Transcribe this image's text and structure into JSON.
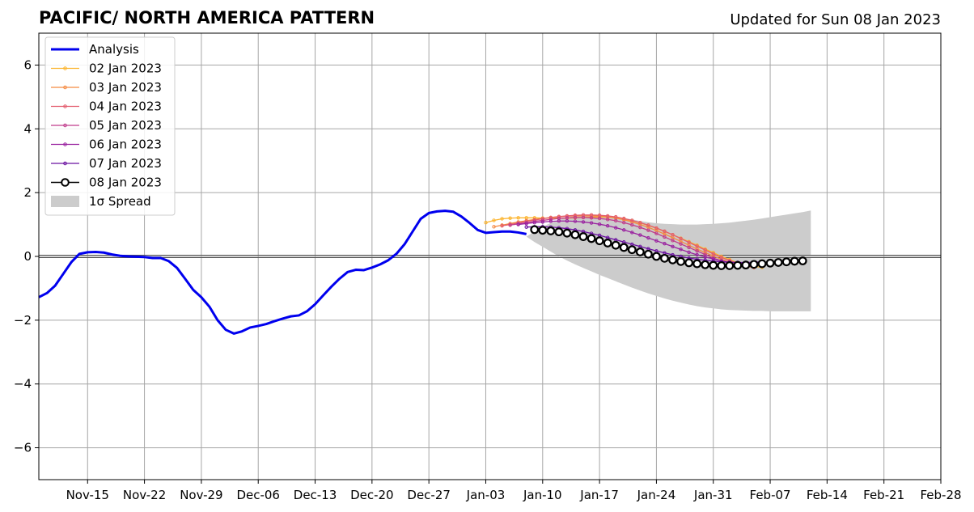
{
  "chart_data": {
    "type": "line",
    "title": "PACIFIC/ NORTH AMERICA PATTERN",
    "subtitle": "Updated for Sun 08 Jan 2023",
    "xlabel": "",
    "ylabel": "",
    "x_range": [
      "2022-11-09",
      "2023-02-28"
    ],
    "ylim": [
      -7,
      7
    ],
    "grid": true,
    "legend_position": "top-left",
    "x_ticks": [
      {
        "date": "2022-11-15",
        "label": "Nov-15"
      },
      {
        "date": "2022-11-22",
        "label": "Nov-22"
      },
      {
        "date": "2022-11-29",
        "label": "Nov-29"
      },
      {
        "date": "2022-12-06",
        "label": "Dec-06"
      },
      {
        "date": "2022-12-13",
        "label": "Dec-13"
      },
      {
        "date": "2022-12-20",
        "label": "Dec-20"
      },
      {
        "date": "2022-12-27",
        "label": "Dec-27"
      },
      {
        "date": "2023-01-03",
        "label": "Jan-03"
      },
      {
        "date": "2023-01-10",
        "label": "Jan-10"
      },
      {
        "date": "2023-01-17",
        "label": "Jan-17"
      },
      {
        "date": "2023-01-24",
        "label": "Jan-24"
      },
      {
        "date": "2023-01-31",
        "label": "Jan-31"
      },
      {
        "date": "2023-02-07",
        "label": "Feb-07"
      },
      {
        "date": "2023-02-14",
        "label": "Feb-14"
      },
      {
        "date": "2023-02-21",
        "label": "Feb-21"
      },
      {
        "date": "2023-02-28",
        "label": "Feb-28"
      }
    ],
    "y_ticks": [
      {
        "value": -6,
        "label": "−6"
      },
      {
        "value": -4,
        "label": "−4"
      },
      {
        "value": -2,
        "label": "−2"
      },
      {
        "value": 0,
        "label": "0"
      },
      {
        "value": 2,
        "label": "2"
      },
      {
        "value": 4,
        "label": "4"
      },
      {
        "value": 6,
        "label": "6"
      }
    ],
    "analysis": {
      "name": "Analysis",
      "color": "#0000ee",
      "points": [
        [
          "2022-11-09",
          -1.28
        ],
        [
          "2022-11-10",
          -1.15
        ],
        [
          "2022-11-11",
          -0.92
        ],
        [
          "2022-11-12",
          -0.55
        ],
        [
          "2022-11-13",
          -0.18
        ],
        [
          "2022-11-14",
          0.08
        ],
        [
          "2022-11-15",
          0.13
        ],
        [
          "2022-11-16",
          0.14
        ],
        [
          "2022-11-17",
          0.12
        ],
        [
          "2022-11-18",
          0.06
        ],
        [
          "2022-11-19",
          0.02
        ],
        [
          "2022-11-20",
          0.0
        ],
        [
          "2022-11-21",
          -0.01
        ],
        [
          "2022-11-22",
          -0.02
        ],
        [
          "2022-11-23",
          -0.05
        ],
        [
          "2022-11-24",
          -0.05
        ],
        [
          "2022-11-25",
          -0.15
        ],
        [
          "2022-11-26",
          -0.36
        ],
        [
          "2022-11-27",
          -0.7
        ],
        [
          "2022-11-28",
          -1.05
        ],
        [
          "2022-11-29",
          -1.28
        ],
        [
          "2022-11-30",
          -1.58
        ],
        [
          "2022-12-01",
          -2.0
        ],
        [
          "2022-12-02",
          -2.3
        ],
        [
          "2022-12-03",
          -2.42
        ],
        [
          "2022-12-04",
          -2.35
        ],
        [
          "2022-12-05",
          -2.23
        ],
        [
          "2022-12-06",
          -2.18
        ],
        [
          "2022-12-07",
          -2.12
        ],
        [
          "2022-12-08",
          -2.03
        ],
        [
          "2022-12-09",
          -1.95
        ],
        [
          "2022-12-10",
          -1.88
        ],
        [
          "2022-12-11",
          -1.85
        ],
        [
          "2022-12-12",
          -1.72
        ],
        [
          "2022-12-13",
          -1.5
        ],
        [
          "2022-12-14",
          -1.22
        ],
        [
          "2022-12-15",
          -0.95
        ],
        [
          "2022-12-16",
          -0.7
        ],
        [
          "2022-12-17",
          -0.49
        ],
        [
          "2022-12-18",
          -0.42
        ],
        [
          "2022-12-19",
          -0.43
        ],
        [
          "2022-12-20",
          -0.35
        ],
        [
          "2022-12-21",
          -0.25
        ],
        [
          "2022-12-22",
          -0.12
        ],
        [
          "2022-12-23",
          0.08
        ],
        [
          "2022-12-24",
          0.38
        ],
        [
          "2022-12-25",
          0.78
        ],
        [
          "2022-12-26",
          1.18
        ],
        [
          "2022-12-27",
          1.36
        ],
        [
          "2022-12-28",
          1.41
        ],
        [
          "2022-12-29",
          1.43
        ],
        [
          "2022-12-30",
          1.4
        ],
        [
          "2022-12-31",
          1.25
        ],
        [
          "2023-01-01",
          1.05
        ],
        [
          "2023-01-02",
          0.83
        ],
        [
          "2023-01-03",
          0.74
        ],
        [
          "2023-01-04",
          0.76
        ],
        [
          "2023-01-05",
          0.78
        ],
        [
          "2023-01-06",
          0.78
        ],
        [
          "2023-01-07",
          0.75
        ],
        [
          "2023-01-08",
          0.7
        ]
      ]
    },
    "forecasts": [
      {
        "name": "02 Jan 2023",
        "color": "#fcb42c",
        "start": "2023-01-03",
        "values": [
          1.06,
          1.13,
          1.18,
          1.2,
          1.21,
          1.21,
          1.21,
          1.2,
          1.2,
          1.2,
          1.2,
          1.21,
          1.22,
          1.23,
          1.24,
          1.23,
          1.21,
          1.17,
          1.12,
          1.05,
          0.97,
          0.88,
          0.78,
          0.68,
          0.57,
          0.46,
          0.35,
          0.23,
          0.12,
          0.0,
          -0.1,
          -0.2,
          -0.27,
          -0.32,
          -0.34
        ]
      },
      {
        "name": "03 Jan 2023",
        "color": "#f58a42",
        "start": "2023-01-04",
        "values": [
          0.93,
          0.98,
          1.03,
          1.08,
          1.12,
          1.16,
          1.19,
          1.22,
          1.24,
          1.26,
          1.27,
          1.27,
          1.27,
          1.26,
          1.24,
          1.2,
          1.15,
          1.08,
          1.0,
          0.91,
          0.81,
          0.7,
          0.59,
          0.47,
          0.35,
          0.23,
          0.12,
          0.01,
          -0.09,
          -0.18,
          -0.26,
          -0.31,
          -0.35
        ]
      },
      {
        "name": "04 Jan 2023",
        "color": "#e35c6e",
        "start": "2023-01-05",
        "values": [
          0.96,
          1.0,
          1.05,
          1.1,
          1.14,
          1.18,
          1.22,
          1.25,
          1.27,
          1.29,
          1.3,
          1.3,
          1.29,
          1.27,
          1.24,
          1.19,
          1.13,
          1.06,
          0.98,
          0.89,
          0.79,
          0.68,
          0.56,
          0.44,
          0.32,
          0.2,
          0.08,
          -0.03,
          -0.13,
          -0.22,
          -0.29,
          -0.34
        ]
      },
      {
        "name": "05 Jan 2023",
        "color": "#c03c8c",
        "start": "2023-01-06",
        "values": [
          0.98,
          1.02,
          1.06,
          1.1,
          1.13,
          1.16,
          1.19,
          1.21,
          1.22,
          1.22,
          1.21,
          1.19,
          1.16,
          1.12,
          1.06,
          0.99,
          0.91,
          0.82,
          0.72,
          0.61,
          0.5,
          0.39,
          0.28,
          0.17,
          0.06,
          -0.05,
          -0.14,
          -0.22,
          -0.28,
          -0.31,
          -0.3
        ]
      },
      {
        "name": "06 Jan 2023",
        "color": "#9a23a0",
        "start": "2023-01-07",
        "values": [
          1.0,
          1.03,
          1.06,
          1.08,
          1.1,
          1.11,
          1.11,
          1.1,
          1.08,
          1.05,
          1.01,
          0.96,
          0.9,
          0.83,
          0.75,
          0.67,
          0.58,
          0.49,
          0.4,
          0.31,
          0.22,
          0.13,
          0.05,
          -0.02,
          -0.08,
          -0.14,
          -0.18,
          -0.21,
          -0.22,
          -0.22,
          -0.21
        ]
      },
      {
        "name": "07 Jan 2023",
        "color": "#6a10a0",
        "start": "2023-01-08",
        "values": [
          0.92,
          0.93,
          0.93,
          0.92,
          0.9,
          0.87,
          0.83,
          0.78,
          0.72,
          0.66,
          0.59,
          0.52,
          0.45,
          0.38,
          0.31,
          0.24,
          0.17,
          0.11,
          0.05,
          0.0,
          -0.05,
          -0.09,
          -0.12,
          -0.15,
          -0.17,
          -0.18,
          -0.19,
          -0.19,
          -0.18,
          -0.17
        ]
      },
      {
        "name": "08 Jan 2023",
        "color": "#000000",
        "start": "2023-01-09",
        "values": [
          0.84,
          0.82,
          0.8,
          0.77,
          0.73,
          0.68,
          0.62,
          0.56,
          0.49,
          0.42,
          0.35,
          0.28,
          0.21,
          0.14,
          0.07,
          0.0,
          -0.06,
          -0.11,
          -0.16,
          -0.2,
          -0.23,
          -0.26,
          -0.28,
          -0.29,
          -0.29,
          -0.28,
          -0.27,
          -0.25,
          -0.23,
          -0.21,
          -0.19,
          -0.17,
          -0.15,
          -0.14
        ]
      }
    ],
    "spread": {
      "name": "1σ Spread",
      "color": "#cccccc",
      "start": "2023-01-08",
      "upper": [
        0.62,
        0.78,
        0.93,
        1.05,
        1.15,
        1.22,
        1.27,
        1.29,
        1.3,
        1.29,
        1.27,
        1.24,
        1.2,
        1.16,
        1.11,
        1.07,
        1.04,
        1.02,
        1.01,
        1.0,
        1.0,
        1.0,
        1.01,
        1.02,
        1.04,
        1.06,
        1.09,
        1.12,
        1.15,
        1.19,
        1.23,
        1.27,
        1.31,
        1.35,
        1.39,
        1.44
      ],
      "lower": [
        0.62,
        0.45,
        0.3,
        0.15,
        0.0,
        -0.13,
        -0.25,
        -0.36,
        -0.47,
        -0.58,
        -0.68,
        -0.78,
        -0.88,
        -0.98,
        -1.07,
        -1.16,
        -1.24,
        -1.32,
        -1.39,
        -1.45,
        -1.51,
        -1.56,
        -1.6,
        -1.63,
        -1.66,
        -1.68,
        -1.69,
        -1.7,
        -1.71,
        -1.71,
        -1.72,
        -1.72,
        -1.72,
        -1.72,
        -1.72,
        -1.72
      ]
    },
    "legend": [
      "Analysis",
      "02 Jan 2023",
      "03 Jan 2023",
      "04 Jan 2023",
      "05 Jan 2023",
      "06 Jan 2023",
      "07 Jan 2023",
      "08 Jan 2023",
      "1σ Spread"
    ]
  }
}
